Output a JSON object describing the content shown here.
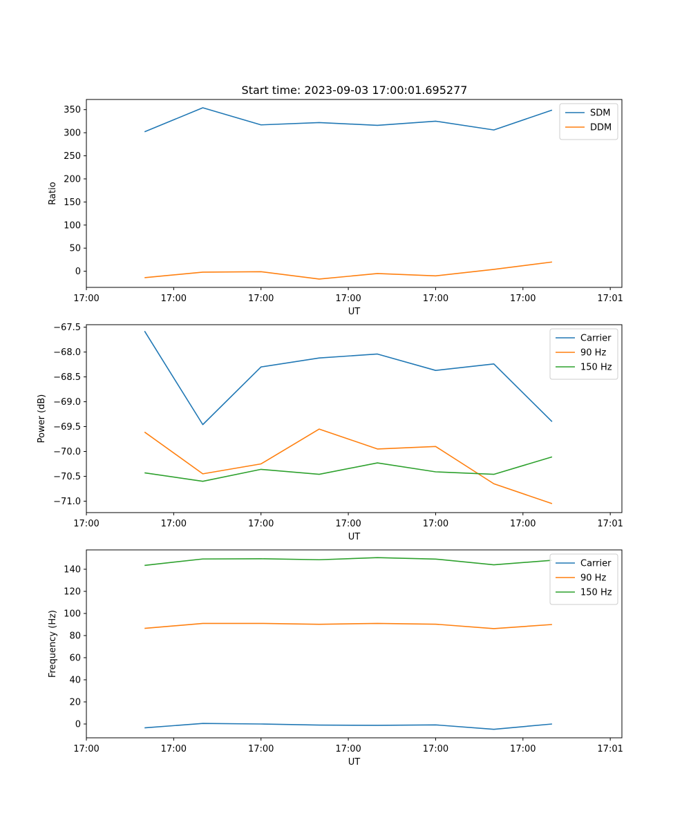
{
  "figure_title": "Start time: 2023-09-03 17:00:01.695277",
  "chart_data": [
    {
      "type": "line",
      "title": "Start time: 2023-09-03 17:00:01.695277",
      "xlabel": "UT",
      "ylabel": "Ratio",
      "x": [
        1,
        2,
        3,
        4,
        5,
        6,
        7,
        8
      ],
      "xlim": [
        0,
        9.2
      ],
      "x_ticks": [
        0,
        1.5,
        3,
        4.5,
        6,
        7.5,
        9
      ],
      "x_tick_labels": [
        "17:00",
        "17:00",
        "17:00",
        "17:00",
        "17:00",
        "17:00",
        "17:01"
      ],
      "ylim": [
        -35,
        372
      ],
      "y_ticks": [
        0,
        50,
        100,
        150,
        200,
        250,
        300,
        350
      ],
      "y_tick_labels": [
        "0",
        "50",
        "100",
        "150",
        "200",
        "250",
        "300",
        "350"
      ],
      "legend_position": "top-right",
      "series": [
        {
          "name": "SDM",
          "color": "#1f77b4",
          "values": [
            302,
            354,
            317,
            322,
            316,
            325,
            306,
            349
          ]
        },
        {
          "name": "DDM",
          "color": "#ff7f0e",
          "values": [
            -14,
            -2,
            -1,
            -17,
            -5,
            -10,
            4,
            20
          ]
        }
      ]
    },
    {
      "type": "line",
      "title": "",
      "xlabel": "UT",
      "ylabel": "Power (dB)",
      "x": [
        1,
        2,
        3,
        4,
        5,
        6,
        7,
        8
      ],
      "xlim": [
        0,
        9.2
      ],
      "x_ticks": [
        0,
        1.5,
        3,
        4.5,
        6,
        7.5,
        9
      ],
      "x_tick_labels": [
        "17:00",
        "17:00",
        "17:00",
        "17:00",
        "17:00",
        "17:00",
        "17:01"
      ],
      "ylim": [
        -71.23,
        -67.45
      ],
      "y_ticks": [
        -71.0,
        -70.5,
        -70.0,
        -69.5,
        -69.0,
        -68.5,
        -68.0,
        -67.5
      ],
      "y_tick_labels": [
        "−71.0",
        "−70.5",
        "−70.0",
        "−69.5",
        "−69.0",
        "−68.5",
        "−68.0",
        "−67.5"
      ],
      "legend_position": "top-right",
      "series": [
        {
          "name": "Carrier",
          "color": "#1f77b4",
          "values": [
            -67.58,
            -69.46,
            -68.3,
            -68.12,
            -68.04,
            -68.37,
            -68.24,
            -69.4
          ]
        },
        {
          "name": "90 Hz",
          "color": "#ff7f0e",
          "values": [
            -69.61,
            -70.45,
            -70.25,
            -69.55,
            -69.95,
            -69.9,
            -70.65,
            -71.05
          ]
        },
        {
          "name": "150 Hz",
          "color": "#2ca02c",
          "values": [
            -70.43,
            -70.6,
            -70.36,
            -70.46,
            -70.23,
            -70.41,
            -70.46,
            -70.11
          ]
        }
      ]
    },
    {
      "type": "line",
      "title": "",
      "xlabel": "UT",
      "ylabel": "Frequency (Hz)",
      "x": [
        1,
        2,
        3,
        4,
        5,
        6,
        7,
        8
      ],
      "xlim": [
        0,
        9.2
      ],
      "x_ticks": [
        0,
        1.5,
        3,
        4.5,
        6,
        7.5,
        9
      ],
      "x_tick_labels": [
        "17:00",
        "17:00",
        "17:00",
        "17:00",
        "17:00",
        "17:00",
        "17:01"
      ],
      "ylim": [
        -12.5,
        157.5
      ],
      "y_ticks": [
        0,
        20,
        40,
        60,
        80,
        100,
        120,
        140
      ],
      "y_tick_labels": [
        "0",
        "20",
        "40",
        "60",
        "80",
        "100",
        "120",
        "140"
      ],
      "legend_position": "top-right",
      "series": [
        {
          "name": "Carrier",
          "color": "#1f77b4",
          "values": [
            -3.5,
            0.5,
            0.0,
            -1.0,
            -1.2,
            -0.8,
            -4.8,
            0.0
          ]
        },
        {
          "name": "90 Hz",
          "color": "#ff7f0e",
          "values": [
            86.5,
            91.0,
            91.0,
            90.2,
            91.0,
            90.3,
            86.3,
            90.0
          ]
        },
        {
          "name": "150 Hz",
          "color": "#2ca02c",
          "values": [
            143.5,
            149.3,
            149.5,
            148.6,
            150.5,
            149.2,
            144.0,
            148.1
          ]
        }
      ]
    }
  ]
}
